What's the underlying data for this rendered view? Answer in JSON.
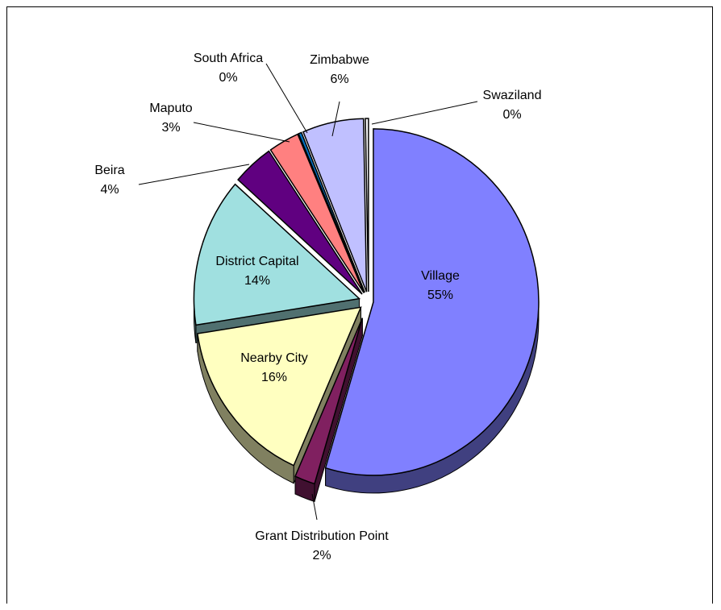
{
  "chart_data": {
    "type": "pie",
    "title": "",
    "legend": "none",
    "slices": [
      {
        "label": "Village",
        "value": 55,
        "value_label": "55%",
        "color": "#8080ff",
        "side": "#404080"
      },
      {
        "label": "Grant Distribution Point",
        "value": 2,
        "value_label": "2%",
        "color": "#802060",
        "side": "#401030"
      },
      {
        "label": "Nearby City",
        "value": 16,
        "value_label": "16%",
        "color": "#ffffc0",
        "side": "#808060"
      },
      {
        "label": "District Capital",
        "value": 14,
        "value_label": "14%",
        "color": "#a0e0e0",
        "side": "#507070"
      },
      {
        "label": "Beira",
        "value": 4,
        "value_label": "4%",
        "color": "#600080",
        "side": "#300040"
      },
      {
        "label": "Maputo",
        "value": 3,
        "value_label": "3%",
        "color": "#ff8080",
        "side": "#804040"
      },
      {
        "label": "South Africa",
        "value": 0.3,
        "value_label": "0%",
        "color": "#0070c0",
        "side": "#003860"
      },
      {
        "label": "Zimbabwe",
        "value": 6,
        "value_label": "6%",
        "color": "#c0c0ff",
        "side": "#606080"
      },
      {
        "label": "Swaziland",
        "value": 0.3,
        "value_label": "0%",
        "color": "#ffffff",
        "side": "#808080"
      }
    ]
  }
}
